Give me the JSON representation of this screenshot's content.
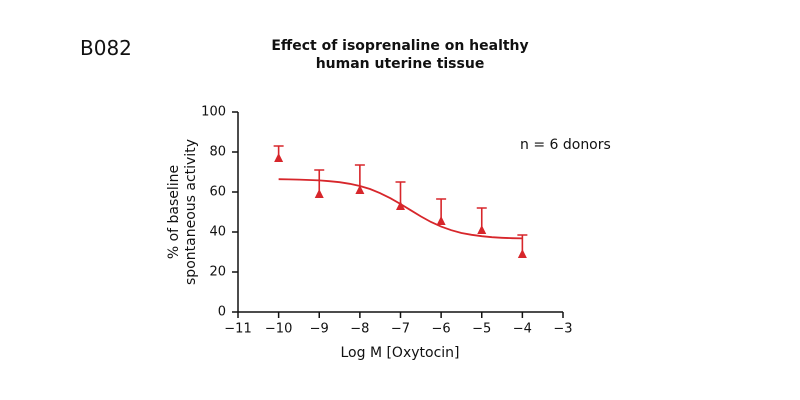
{
  "label": "B082",
  "chart_data": {
    "type": "scatter",
    "title": "Effect of isoprenaline on healthy human uterine tissue",
    "xlabel": "Log M [Oxytocin]",
    "ylabel": "% of baseline spontaneous activity",
    "annotation": "n = 6 donors",
    "x": [
      -10,
      -9,
      -8,
      -7,
      -6,
      -5,
      -4
    ],
    "series": [
      {
        "color": "#d7262b",
        "marker": "triangle",
        "values": [
          77,
          59,
          61,
          53,
          45.5,
          41,
          29
        ],
        "errors": [
          6,
          12,
          12.5,
          12,
          11,
          11,
          9.5
        ]
      }
    ],
    "curve": {
      "color": "#d7262b",
      "x": [
        -10,
        -9.75,
        -9.5,
        -9.25,
        -9,
        -8.75,
        -8.5,
        -8.25,
        -8,
        -7.75,
        -7.5,
        -7.25,
        -7,
        -6.75,
        -6.5,
        -6.25,
        -6,
        -5.75,
        -5.5,
        -5.25,
        -5,
        -4.75,
        -4.5,
        -4.25,
        -4
      ],
      "values": [
        66.4,
        66.3,
        66.2,
        66.0,
        65.8,
        65.4,
        64.9,
        64.1,
        63.0,
        61.5,
        59.4,
        56.9,
        54.0,
        50.9,
        47.8,
        45.0,
        42.7,
        40.9,
        39.5,
        38.6,
        37.9,
        37.4,
        37.1,
        36.9,
        36.8
      ]
    },
    "xlim": [
      -11,
      -3
    ],
    "xticks": [
      {
        "value": -11,
        "label": "−11"
      },
      {
        "value": -10,
        "label": "−10"
      },
      {
        "value": -9,
        "label": "−9"
      },
      {
        "value": -8,
        "label": "−8"
      },
      {
        "value": -7,
        "label": "−7"
      },
      {
        "value": -6,
        "label": "−6"
      },
      {
        "value": -5,
        "label": "−5"
      },
      {
        "value": -4,
        "label": "−4"
      },
      {
        "value": -3,
        "label": "−3"
      }
    ],
    "ylim": [
      0,
      100
    ],
    "yticks": [
      0,
      20,
      40,
      60,
      80,
      100
    ],
    "grid": false
  }
}
